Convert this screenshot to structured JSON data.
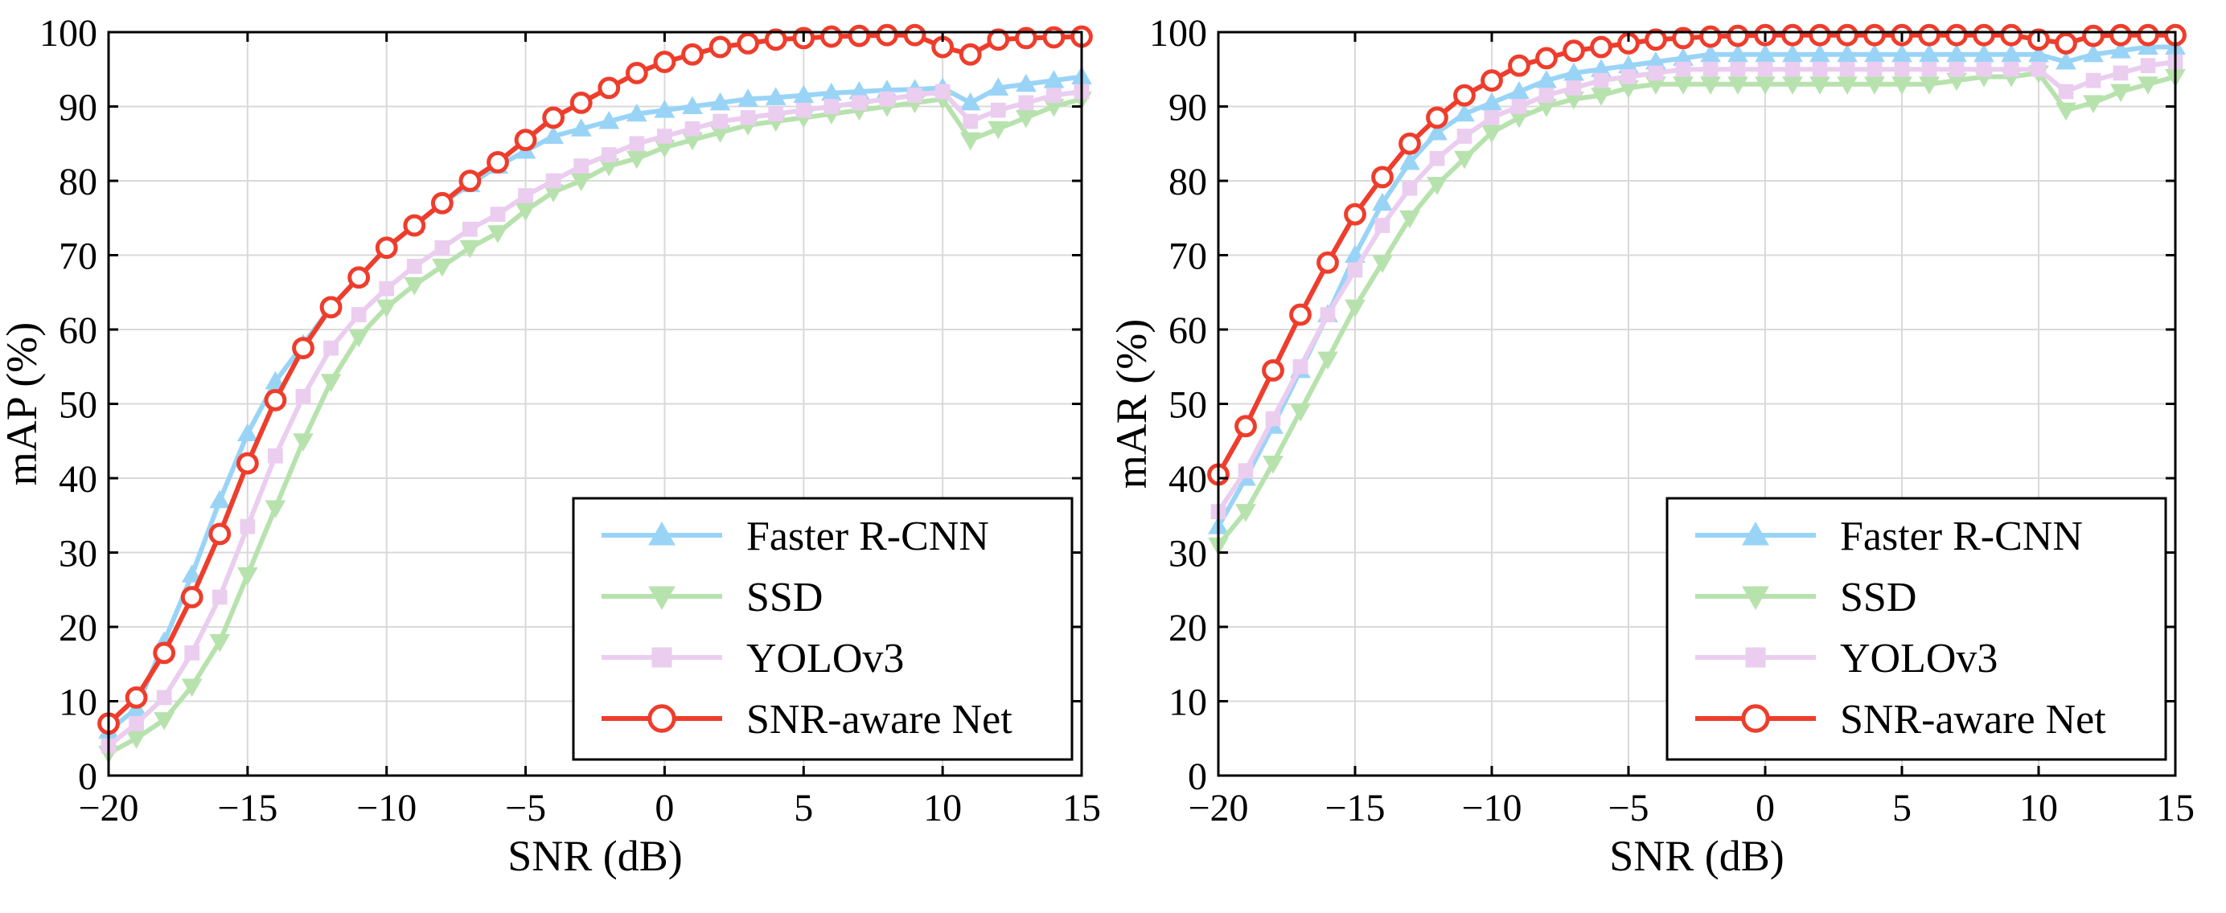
{
  "chart_data": [
    {
      "type": "line",
      "title": "",
      "xlabel": "SNR (dB)",
      "ylabel": "mAP (%)",
      "xlim": [
        -20,
        15
      ],
      "ylim": [
        0,
        100
      ],
      "xticks": [
        -20,
        -15,
        -10,
        -5,
        0,
        5,
        10,
        15
      ],
      "yticks": [
        0,
        10,
        20,
        30,
        40,
        50,
        60,
        70,
        80,
        90,
        100
      ],
      "xtick_labels": [
        "−20",
        "−15",
        "−10",
        "−5",
        "0",
        "5",
        "10",
        "15"
      ],
      "ytick_labels": [
        "0",
        "10",
        "20",
        "30",
        "40",
        "50",
        "60",
        "70",
        "80",
        "90",
        "100"
      ],
      "grid": true,
      "legend_position": "lower-right",
      "x": [
        -20,
        -19,
        -18,
        -17,
        -16,
        -15,
        -14,
        -13,
        -12,
        -11,
        -10,
        -9,
        -8,
        -7,
        -6,
        -5,
        -4,
        -3,
        -2,
        -1,
        0,
        1,
        2,
        3,
        4,
        5,
        6,
        7,
        8,
        9,
        10,
        11,
        12,
        13,
        14,
        15
      ],
      "series": [
        {
          "name": "Faster R-CNN",
          "color": "#99d4f7",
          "marker": "triangle-up",
          "values": [
            6,
            9,
            18,
            27,
            37,
            46,
            53,
            58,
            63,
            67,
            71,
            74,
            77,
            79.5,
            82,
            84,
            86,
            87,
            88,
            89,
            89.5,
            90,
            90.5,
            91,
            91.2,
            91.5,
            91.8,
            92,
            92.2,
            92.3,
            92.5,
            90.5,
            92.5,
            93,
            93.5,
            94
          ]
        },
        {
          "name": "SSD",
          "color": "#b7e2ad",
          "marker": "triangle-down",
          "values": [
            3,
            5,
            7.5,
            12,
            18,
            27,
            36,
            45,
            53,
            59,
            63,
            66,
            68.5,
            71,
            73,
            76,
            78.5,
            80,
            82,
            83,
            84.5,
            85.5,
            86.5,
            87.5,
            88,
            88.5,
            89,
            89.5,
            90,
            90.5,
            91,
            85.5,
            87,
            88.5,
            90,
            91
          ]
        },
        {
          "name": "YOLOv3",
          "color": "#ebcdf0",
          "marker": "square",
          "values": [
            4,
            7,
            10.5,
            16.5,
            24,
            33.5,
            43,
            51,
            57.5,
            62,
            65.5,
            68.5,
            71,
            73.5,
            75.5,
            78,
            80,
            82,
            83.5,
            85,
            86,
            87,
            88,
            88.5,
            89,
            89.5,
            90,
            90.5,
            91,
            91.5,
            92,
            88,
            89.5,
            90.5,
            91.5,
            92
          ]
        },
        {
          "name": "SNR-aware Net",
          "color": "#ee3d2c",
          "marker": "circle",
          "values": [
            7,
            10.5,
            16.5,
            24,
            32.5,
            42,
            50.5,
            57.5,
            63,
            67,
            71,
            74,
            77,
            80,
            82.5,
            85.5,
            88.5,
            90.5,
            92.5,
            94.5,
            96,
            97,
            98,
            98.5,
            99,
            99.2,
            99.4,
            99.5,
            99.6,
            99.6,
            98,
            97,
            99,
            99.2,
            99.3,
            99.4
          ]
        }
      ]
    },
    {
      "type": "line",
      "title": "",
      "xlabel": "SNR (dB)",
      "ylabel": "mAR (%)",
      "xlim": [
        -20,
        15
      ],
      "ylim": [
        0,
        100
      ],
      "xticks": [
        -20,
        -15,
        -10,
        -5,
        0,
        5,
        10,
        15
      ],
      "yticks": [
        0,
        10,
        20,
        30,
        40,
        50,
        60,
        70,
        80,
        90,
        100
      ],
      "xtick_labels": [
        "−20",
        "−15",
        "−10",
        "−5",
        "0",
        "5",
        "10",
        "15"
      ],
      "ytick_labels": [
        "0",
        "10",
        "20",
        "30",
        "40",
        "50",
        "60",
        "70",
        "80",
        "90",
        "100"
      ],
      "grid": true,
      "legend_position": "lower-right",
      "x": [
        -20,
        -19,
        -18,
        -17,
        -16,
        -15,
        -14,
        -13,
        -12,
        -11,
        -10,
        -9,
        -8,
        -7,
        -6,
        -5,
        -4,
        -3,
        -2,
        -1,
        0,
        1,
        2,
        3,
        4,
        5,
        6,
        7,
        8,
        9,
        10,
        11,
        12,
        13,
        14,
        15
      ],
      "series": [
        {
          "name": "Faster R-CNN",
          "color": "#99d4f7",
          "marker": "triangle-up",
          "values": [
            33.5,
            40,
            47,
            54.5,
            62,
            70,
            77,
            82.5,
            86.5,
            89,
            90.5,
            92,
            93.5,
            94.5,
            95,
            95.5,
            96,
            96.5,
            97,
            97,
            97,
            97,
            97,
            97,
            97,
            97,
            97,
            97,
            97,
            97,
            97,
            96,
            97,
            97.5,
            98,
            98
          ]
        },
        {
          "name": "SSD",
          "color": "#b7e2ad",
          "marker": "triangle-down",
          "values": [
            31,
            35.5,
            42,
            49,
            56,
            63,
            69,
            75,
            79.5,
            83,
            86.5,
            88.5,
            90,
            91,
            91.5,
            92.5,
            93,
            93,
            93,
            93,
            93,
            93,
            93,
            93,
            93,
            93,
            93,
            93.5,
            94,
            94,
            94.5,
            89.5,
            90.5,
            92,
            93,
            94
          ]
        },
        {
          "name": "YOLOv3",
          "color": "#ebcdf0",
          "marker": "square",
          "values": [
            35.5,
            41,
            48,
            55,
            62,
            68,
            74,
            79,
            83,
            86,
            88.5,
            90,
            91.5,
            92.5,
            93.5,
            94,
            94.5,
            95,
            95,
            95,
            95,
            95,
            95,
            95,
            95,
            95,
            95,
            95,
            95,
            95,
            95,
            92,
            93.5,
            94.5,
            95.5,
            96
          ]
        },
        {
          "name": "SNR-aware Net",
          "color": "#ee3d2c",
          "marker": "circle",
          "values": [
            40.5,
            47,
            54.5,
            62,
            69,
            75.5,
            80.5,
            85,
            88.5,
            91.5,
            93.5,
            95.5,
            96.5,
            97.5,
            98,
            98.5,
            99,
            99.2,
            99.4,
            99.5,
            99.6,
            99.6,
            99.6,
            99.6,
            99.6,
            99.6,
            99.6,
            99.6,
            99.6,
            99.6,
            99,
            98.5,
            99.5,
            99.6,
            99.6,
            99.6
          ]
        }
      ]
    }
  ]
}
